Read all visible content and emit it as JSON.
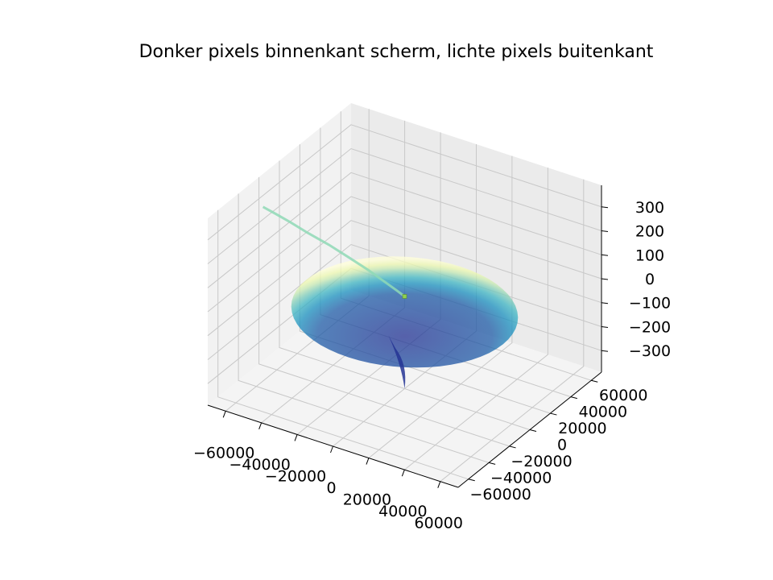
{
  "chart_data": {
    "type": "surface3d",
    "title": "Donker pixels binnenkant scherm, lichte pixels buitenkant",
    "xlabel": "",
    "ylabel": "",
    "zlabel": "",
    "x_ticks": [
      -60000,
      -40000,
      -20000,
      0,
      20000,
      40000,
      60000
    ],
    "x_tick_labels": [
      "−60000",
      "−40000",
      "−20000",
      "0",
      "20000",
      "40000",
      "60000"
    ],
    "y_ticks": [
      -60000,
      -40000,
      -20000,
      0,
      20000,
      40000,
      60000
    ],
    "y_tick_labels": [
      "−60000",
      "−40000",
      "−20000",
      "0",
      "20000",
      "40000",
      "60000"
    ],
    "z_ticks": [
      -300,
      -200,
      -100,
      0,
      100,
      200,
      300
    ],
    "z_tick_labels": [
      "−300",
      "−200",
      "−100",
      "0",
      "100",
      "200",
      "300"
    ],
    "xlim": [
      -70000,
      70000
    ],
    "ylim": [
      -70000,
      70000
    ],
    "zlim": [
      -390,
      390
    ],
    "grid": true,
    "surface": {
      "shape": "funnel",
      "radius": 55000,
      "z_rim": -70,
      "z_bottom": -390,
      "colormap": [
        "#ffffd9",
        "#edf8b1",
        "#c7e9b4",
        "#7fcdbb",
        "#41b6c4",
        "#1d91c0",
        "#225ea8",
        "#253494"
      ]
    },
    "series": [
      {
        "type": "line3d",
        "color": "#8fd9b6",
        "x": [
          -62000,
          -58000,
          -52000,
          -45000,
          -36000,
          -27000,
          -18000,
          -10000,
          -4000,
          0
        ],
        "y": [
          -30000,
          -26000,
          -21000,
          -16000,
          -11000,
          -7000,
          -4000,
          -1500,
          -300,
          0
        ],
        "z": [
          320,
          290,
          250,
          205,
          160,
          115,
          75,
          35,
          10,
          -5
        ]
      }
    ],
    "markers": [
      {
        "x": 0,
        "y": 0,
        "z": -5,
        "color": "#8fd14f"
      }
    ]
  }
}
